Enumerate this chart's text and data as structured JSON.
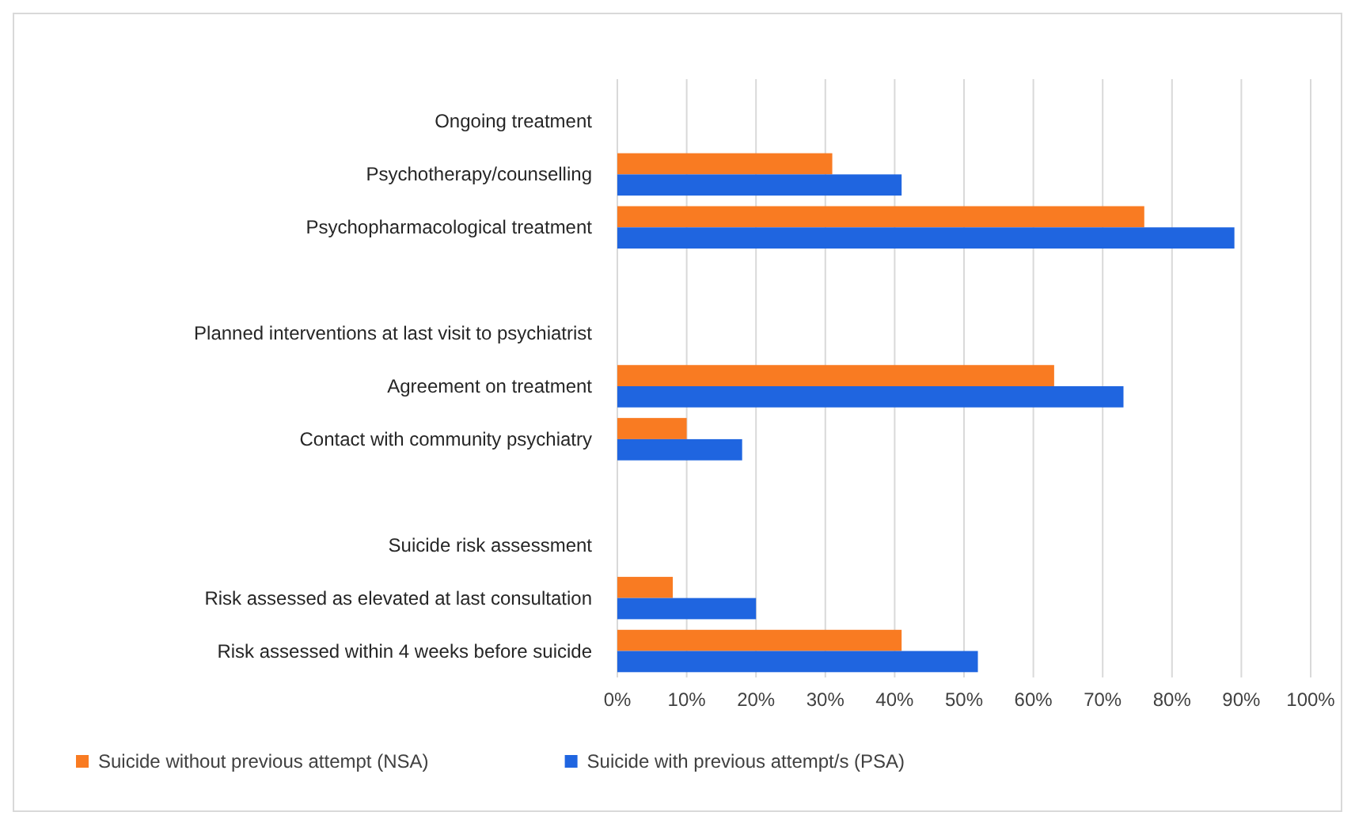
{
  "chart_data": {
    "type": "bar",
    "orientation": "horizontal",
    "categories": [
      "Ongoing treatment",
      "Psychotherapy/counselling",
      "Psychopharmacological treatment",
      null,
      "Planned interventions at last visit to psychiatrist",
      "Agreement on treatment",
      "Contact with community psychiatry",
      null,
      "Suicide risk assessment",
      "Risk assessed as elevated at last consultation",
      "Risk assessed within 4 weeks before suicide"
    ],
    "series": [
      {
        "name": "Suicide without previous attempt (NSA)",
        "color": "#f97b22",
        "values": [
          null,
          31,
          76,
          null,
          null,
          63,
          10,
          null,
          null,
          8,
          41
        ]
      },
      {
        "name": "Suicide with previous attempt/s (PSA)",
        "color": "#1f65e0",
        "values": [
          null,
          41,
          89,
          null,
          null,
          73,
          18,
          null,
          null,
          20,
          52
        ]
      }
    ],
    "xlim": [
      0,
      100
    ],
    "xticks": [
      {
        "value": 0,
        "label": "0%"
      },
      {
        "value": 10,
        "label": "10%"
      },
      {
        "value": 20,
        "label": "20%"
      },
      {
        "value": 30,
        "label": "30%"
      },
      {
        "value": 40,
        "label": "40%"
      },
      {
        "value": 50,
        "label": "50%"
      },
      {
        "value": 60,
        "label": "60%"
      },
      {
        "value": 70,
        "label": "70%"
      },
      {
        "value": 80,
        "label": "80%"
      },
      {
        "value": 90,
        "label": "90%"
      },
      {
        "value": 100,
        "label": "100%"
      }
    ],
    "grid": "x",
    "legend": "bottom"
  }
}
